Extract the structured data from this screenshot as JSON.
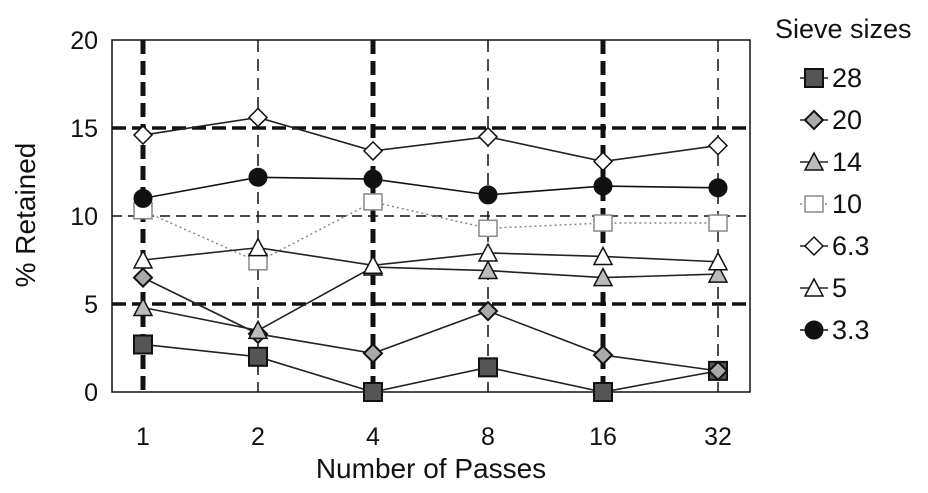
{
  "chart_data": {
    "type": "line",
    "title": "",
    "xlabel": "Number of Passes",
    "ylabel": "% Retained",
    "categories": [
      "1",
      "2",
      "4",
      "8",
      "16",
      "32"
    ],
    "ylim": [
      0,
      20
    ],
    "yticks": [
      "0",
      "5",
      "10",
      "15",
      "20"
    ],
    "grid": true,
    "legend_title": "Sieve sizes",
    "legend_position": "right",
    "series": [
      {
        "name": "28",
        "marker": "square-filled",
        "line": "solid",
        "color": "#222222",
        "values": [
          2.7,
          2.0,
          0.0,
          1.4,
          0.0,
          1.2
        ]
      },
      {
        "name": "20",
        "marker": "diamond-gray",
        "line": "solid",
        "color": "#222222",
        "values": [
          6.5,
          3.3,
          2.2,
          4.6,
          2.1,
          1.2
        ]
      },
      {
        "name": "14",
        "marker": "triangle-gray",
        "line": "solid",
        "color": "#222222",
        "values": [
          4.8,
          3.5,
          7.1,
          6.9,
          6.5,
          6.7
        ]
      },
      {
        "name": "10",
        "marker": "square-open",
        "line": "dotted",
        "color": "#888888",
        "values": [
          10.3,
          7.4,
          10.8,
          9.3,
          9.6,
          9.6
        ]
      },
      {
        "name": "6.3",
        "marker": "diamond-open",
        "line": "solid",
        "color": "#222222",
        "values": [
          14.6,
          15.6,
          13.7,
          14.5,
          13.1,
          14.0
        ]
      },
      {
        "name": "5",
        "marker": "triangle-open",
        "line": "solid",
        "color": "#222222",
        "values": [
          7.5,
          8.2,
          7.2,
          7.9,
          7.7,
          7.4
        ]
      },
      {
        "name": "3.3",
        "marker": "circle-filled",
        "line": "solid",
        "color": "#111111",
        "values": [
          11.0,
          12.2,
          12.1,
          11.2,
          11.7,
          11.6
        ]
      }
    ]
  }
}
